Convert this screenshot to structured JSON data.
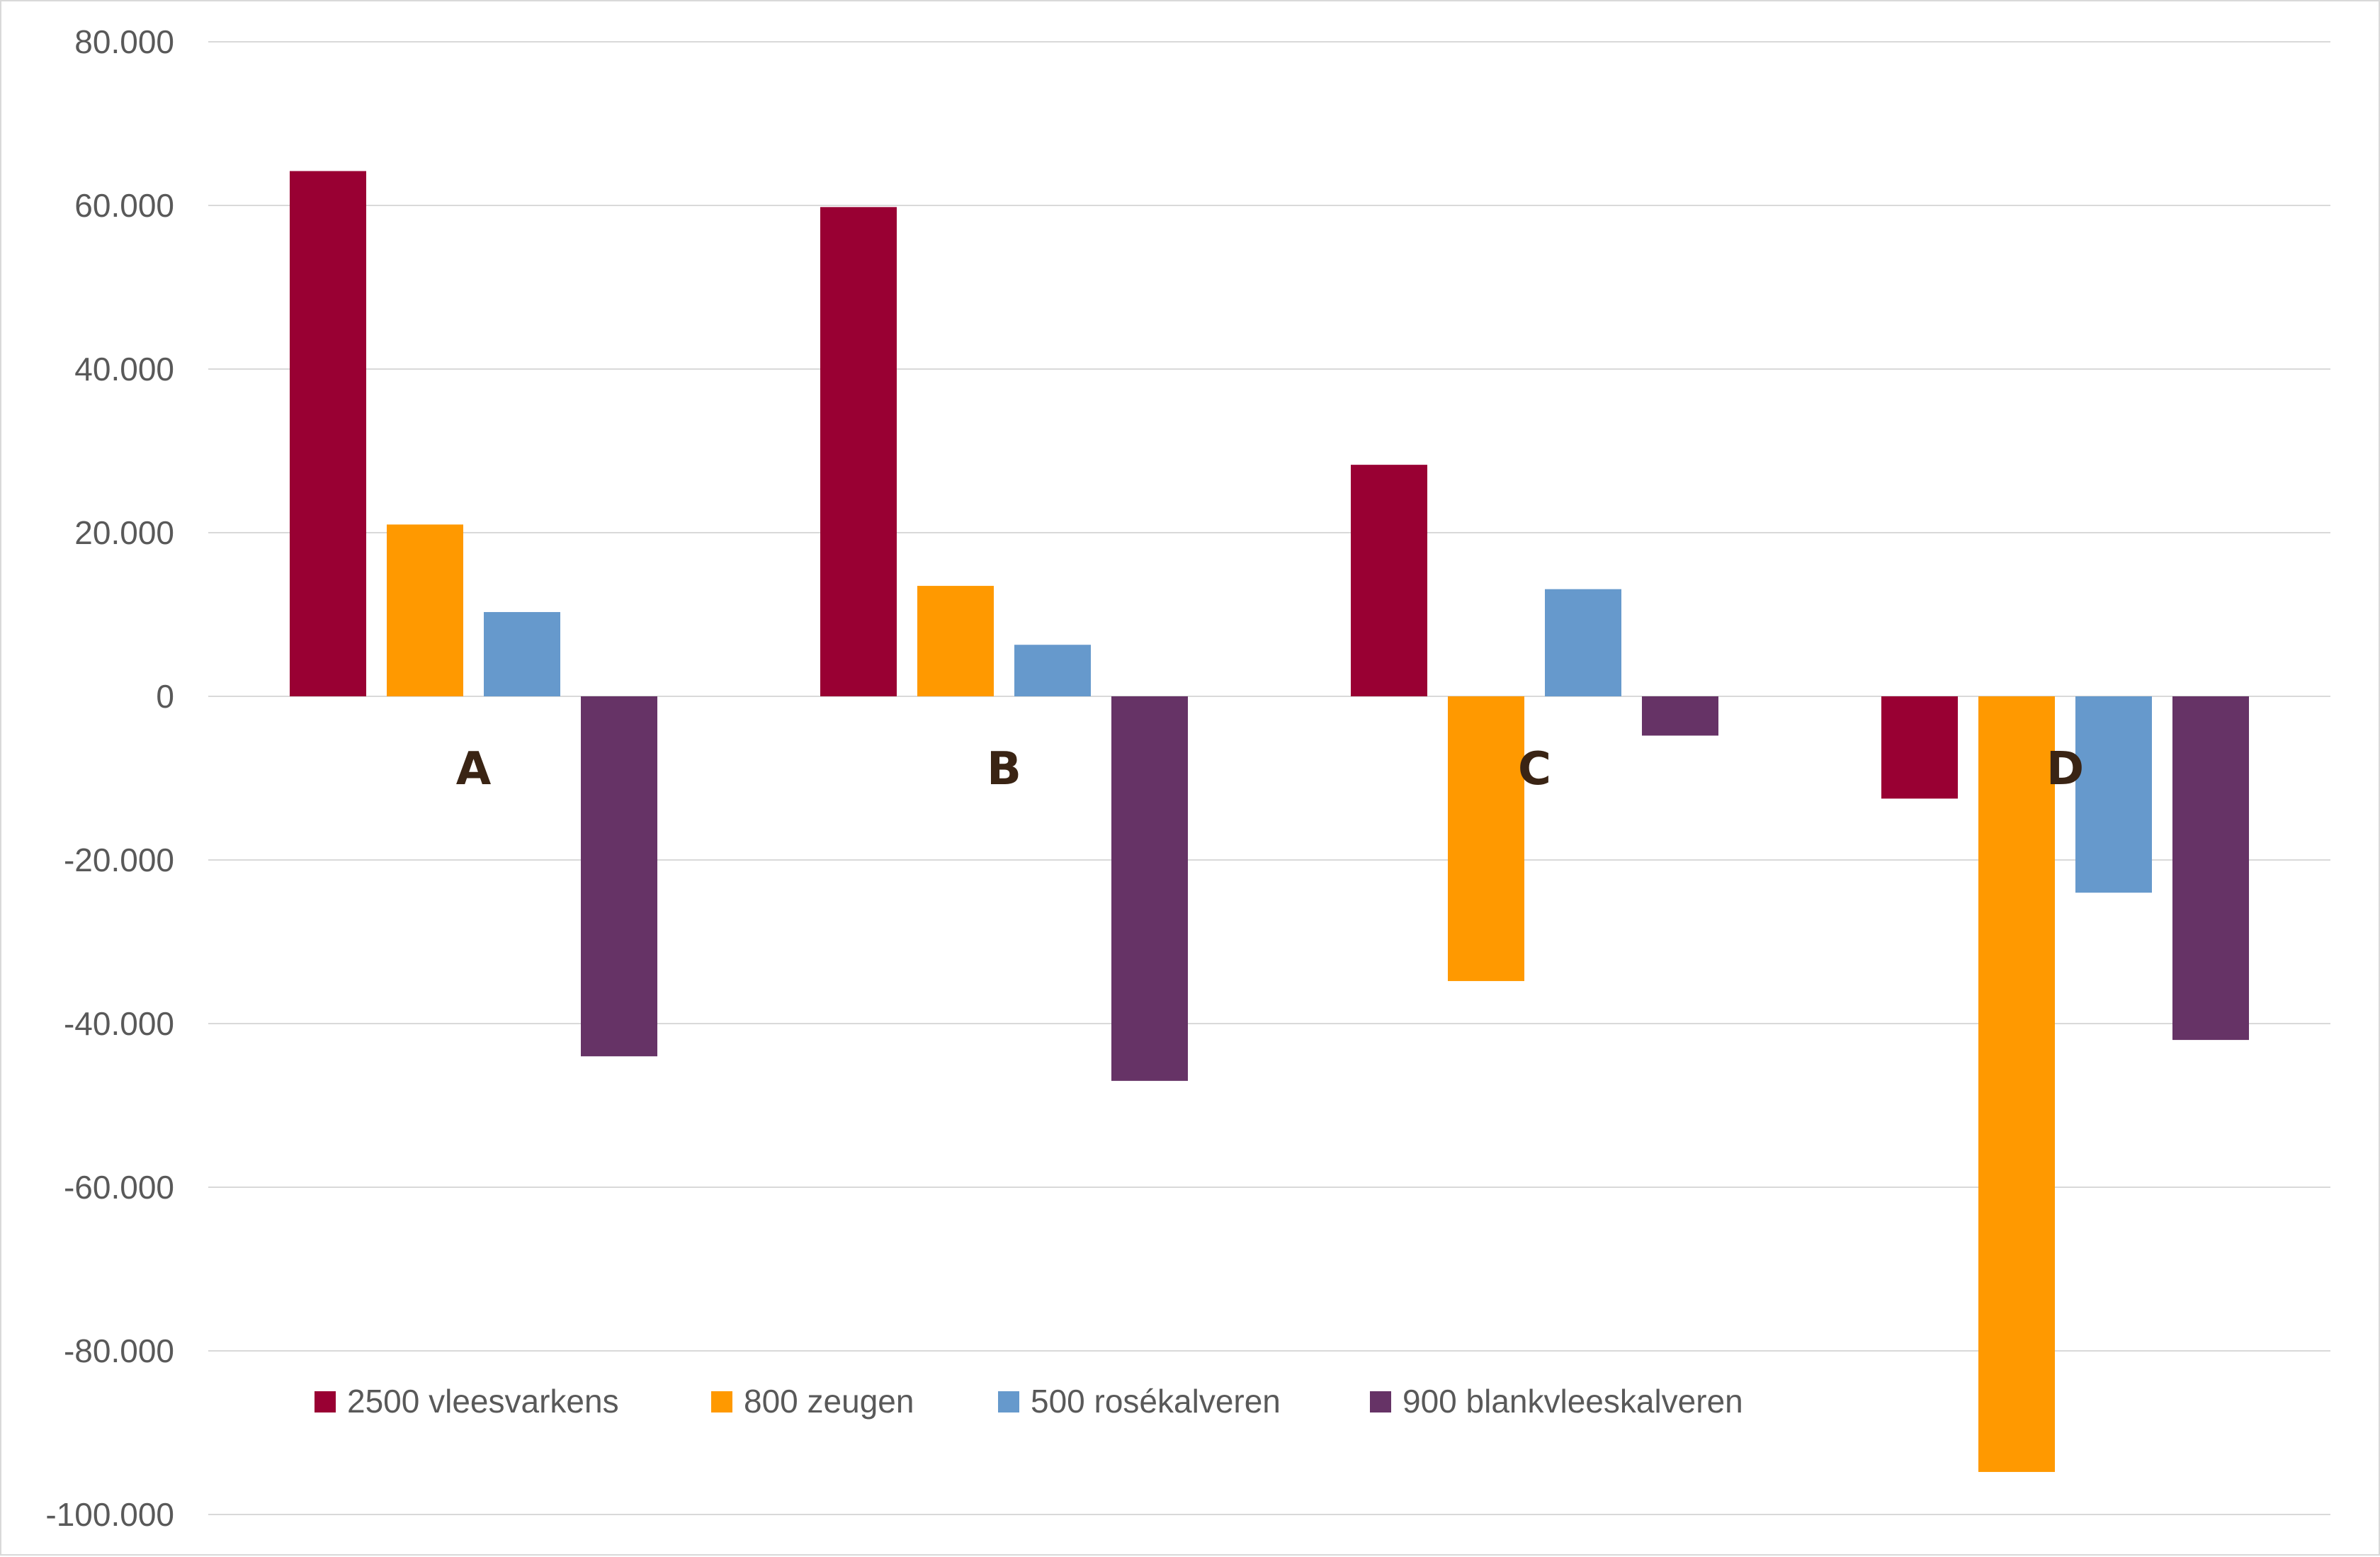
{
  "chart_data": {
    "type": "bar",
    "title": "",
    "xlabel": "",
    "ylabel": "",
    "categories": [
      "A",
      "B",
      "C",
      "D"
    ],
    "series": [
      {
        "name": "2500 vleesvarkens",
        "color": "#990033",
        "values": [
          64200,
          59800,
          28300,
          -12500
        ]
      },
      {
        "name": "800 zeugen",
        "color": "#ff9900",
        "values": [
          21000,
          13500,
          -34800,
          -94800
        ]
      },
      {
        "name": "500 rosékalveren",
        "color": "#6699cc",
        "values": [
          10300,
          6300,
          13100,
          -24000
        ]
      },
      {
        "name": "900 blankvleeskalveren",
        "color": "#663366",
        "values": [
          -44000,
          -47000,
          -4800,
          -42000
        ]
      }
    ],
    "ylim": [
      -100000,
      80000
    ],
    "yticks": [
      80000,
      60000,
      40000,
      20000,
      0,
      -20000,
      -40000,
      -60000,
      -80000,
      -100000
    ],
    "ytick_labels": [
      "80.000",
      "60.000",
      "40.000",
      "20.000",
      "0",
      "-20.000",
      "-40.000",
      "-60.000",
      "-80.000",
      "-100.000"
    ],
    "grid": true,
    "legend_position": "bottom-left-inside",
    "gridline_color": "#d9d9d9"
  }
}
